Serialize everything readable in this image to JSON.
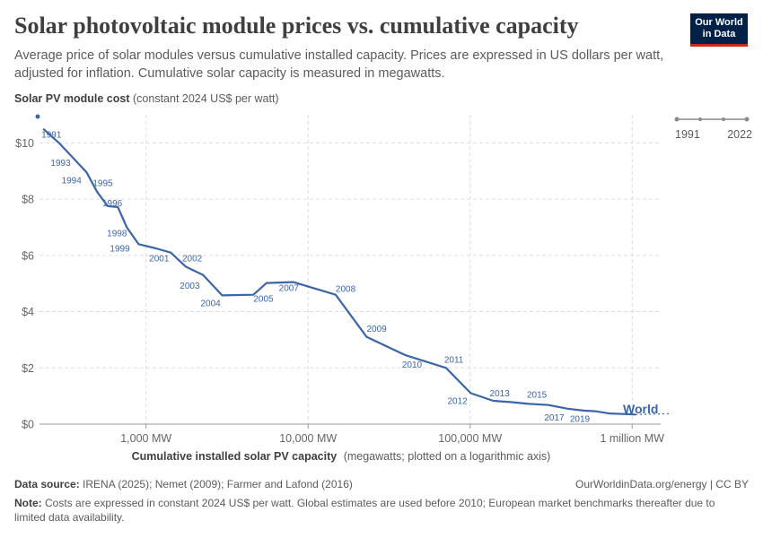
{
  "header": {
    "title": "Solar photovoltaic module prices vs. cumulative capacity",
    "subtitle": "Average price of solar modules versus cumulative installed capacity. Prices are expressed in US dollars per watt, adjusted for inflation. Cumulative solar capacity is measured in megawatts.",
    "logo_line1": "Our World",
    "logo_line2": "in Data"
  },
  "timeline": {
    "start": "1991",
    "end": "2022"
  },
  "footer": {
    "source_label": "Data source:",
    "source_text": "IRENA (2025); Nemet (2009); Farmer and Lafond (2016)",
    "right_text": "OurWorldinData.org/energy | CC BY",
    "note_label": "Note:",
    "note_text": "Costs are expressed in constant 2024 US$ per watt. Global estimates are used before 2010; European market benchmarks thereafter due to limited data availability."
  },
  "colors": {
    "line": "#3c65a8",
    "grid": "#dddddd",
    "logo_bg": "#002147",
    "logo_accent": "#ce261e"
  },
  "chart_data": {
    "type": "line",
    "ylabel_bold": "Solar PV module cost",
    "ylabel_rest": "(constant 2024 US$ per watt)",
    "xlabel_bold": "Cumulative installed solar PV capacity",
    "xlabel_rest": "(megawatts; plotted on a logarithmic axis)",
    "x_scale": "log",
    "xlim": [
      220,
      1500000
    ],
    "ylim": [
      0,
      11
    ],
    "grid": true,
    "x_ticks": [
      {
        "value": 1000,
        "label": "1,000 MW"
      },
      {
        "value": 10000,
        "label": "10,000 MW"
      },
      {
        "value": 100000,
        "label": "100,000 MW"
      },
      {
        "value": 1000000,
        "label": "1 million MW"
      }
    ],
    "y_ticks": [
      {
        "value": 0,
        "label": "$0"
      },
      {
        "value": 2,
        "label": "$2"
      },
      {
        "value": 4,
        "label": "$4"
      },
      {
        "value": 6,
        "label": "$6"
      },
      {
        "value": 8,
        "label": "$8"
      },
      {
        "value": 10,
        "label": "$10"
      }
    ],
    "series": [
      {
        "name": "World",
        "points": [
          {
            "year": "1991",
            "x": 232,
            "y": 10.5,
            "show": true
          },
          {
            "year": "1992",
            "x": 290,
            "y": 10.0,
            "show": false
          },
          {
            "year": "1993",
            "x": 350,
            "y": 9.5,
            "show": true
          },
          {
            "year": "1994",
            "x": 430,
            "y": 8.95,
            "show": true
          },
          {
            "year": "1995",
            "x": 500,
            "y": 8.25,
            "show": true
          },
          {
            "year": "1996",
            "x": 580,
            "y": 7.75,
            "show": true
          },
          {
            "year": "1997",
            "x": 670,
            "y": 7.72,
            "show": false
          },
          {
            "year": "1998",
            "x": 760,
            "y": 7.0,
            "show": true
          },
          {
            "year": "1999",
            "x": 900,
            "y": 6.4,
            "show": true
          },
          {
            "year": "2000",
            "x": 1150,
            "y": 6.25,
            "show": false
          },
          {
            "year": "2001",
            "x": 1420,
            "y": 6.1,
            "show": true
          },
          {
            "year": "2002",
            "x": 1760,
            "y": 5.6,
            "show": true
          },
          {
            "year": "2003",
            "x": 2250,
            "y": 5.3,
            "show": true
          },
          {
            "year": "2004",
            "x": 2950,
            "y": 4.58,
            "show": true
          },
          {
            "year": "2005",
            "x": 4600,
            "y": 4.6,
            "show": true
          },
          {
            "year": "2006",
            "x": 5550,
            "y": 5.02,
            "show": false
          },
          {
            "year": "2007",
            "x": 8100,
            "y": 5.05,
            "show": true
          },
          {
            "year": "2008",
            "x": 14800,
            "y": 4.6,
            "show": true
          },
          {
            "year": "2009",
            "x": 23000,
            "y": 3.1,
            "show": true
          },
          {
            "year": "2010",
            "x": 40000,
            "y": 2.45,
            "show": true
          },
          {
            "year": "2011",
            "x": 71000,
            "y": 2.0,
            "show": true
          },
          {
            "year": "2012",
            "x": 101000,
            "y": 1.1,
            "show": true
          },
          {
            "year": "2013",
            "x": 139000,
            "y": 0.83,
            "show": true
          },
          {
            "year": "2014",
            "x": 180000,
            "y": 0.78,
            "show": false
          },
          {
            "year": "2015",
            "x": 230000,
            "y": 0.72,
            "show": true
          },
          {
            "year": "2016",
            "x": 305000,
            "y": 0.68,
            "show": false
          },
          {
            "year": "2017",
            "x": 400000,
            "y": 0.55,
            "show": true
          },
          {
            "year": "2018",
            "x": 500000,
            "y": 0.48,
            "show": false
          },
          {
            "year": "2019",
            "x": 590000,
            "y": 0.46,
            "show": true
          },
          {
            "year": "2020",
            "x": 720000,
            "y": 0.38,
            "show": false
          },
          {
            "year": "2021",
            "x": 880000,
            "y": 0.36,
            "show": false
          },
          {
            "year": "2022",
            "x": 1050000,
            "y": 0.34,
            "show": false
          }
        ]
      }
    ]
  }
}
